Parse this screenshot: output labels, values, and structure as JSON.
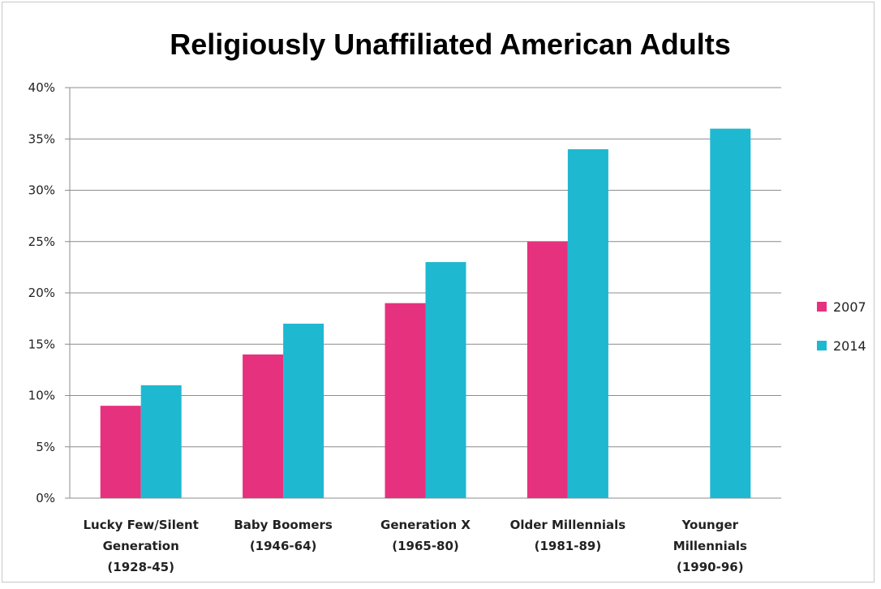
{
  "chart_data": {
    "type": "bar",
    "title": "Religiously Unaffiliated American Adults",
    "categories": [
      [
        "Lucky Few/Silent",
        "Generation",
        "(1928-45)"
      ],
      [
        "Baby Boomers",
        "(1946-64)"
      ],
      [
        "Generation X",
        "(1965-80)"
      ],
      [
        "Older Millennials",
        "(1981-89)"
      ],
      [
        "Younger",
        "Millennials",
        "(1990-96)"
      ]
    ],
    "series": [
      {
        "name": "2007",
        "color": "#e6317f",
        "values": [
          9,
          14,
          19,
          25,
          null
        ]
      },
      {
        "name": "2014",
        "color": "#1fb8d1",
        "values": [
          11,
          17,
          23,
          34,
          36
        ]
      }
    ],
    "yticks": [
      "0%",
      "5%",
      "10%",
      "15%",
      "20%",
      "25%",
      "30%",
      "35%",
      "40%"
    ],
    "ylim": [
      0,
      40
    ],
    "ylabel": "",
    "xlabel": "",
    "grid": true,
    "legend_position": "right"
  }
}
